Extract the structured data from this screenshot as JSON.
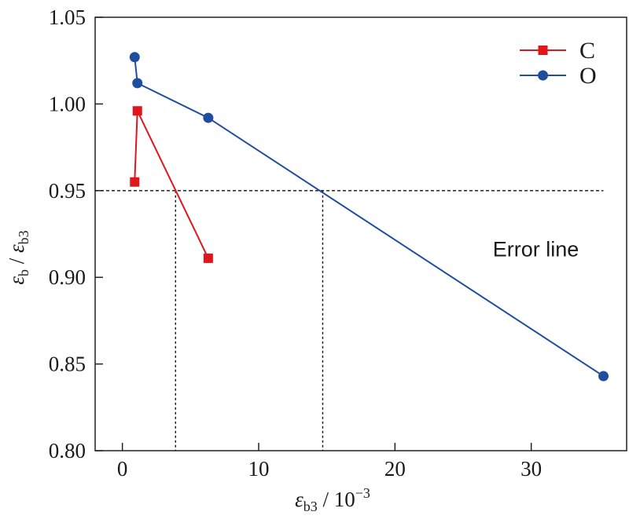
{
  "chart_data": {
    "type": "line",
    "xlabel": {
      "symbol": "ε",
      "sub": "b3",
      "rest": " / 10",
      "sup": "−3"
    },
    "ylabel": {
      "symbol1": "ε",
      "sub1": "b",
      "mid": " / ",
      "symbol2": "ε",
      "sub2": "b3"
    },
    "xlim": [
      -2,
      37
    ],
    "ylim": [
      0.8,
      1.05
    ],
    "xticks": [
      0,
      10,
      20,
      30
    ],
    "xtick_labels": [
      "0",
      "10",
      "20",
      "30"
    ],
    "yticks": [
      0.8,
      0.85,
      0.9,
      0.95,
      1.0,
      1.05
    ],
    "ytick_labels": [
      "0.80",
      "0.85",
      "0.90",
      "0.95",
      "1.00",
      "1.05"
    ],
    "legend_position": "top-right",
    "series": [
      {
        "name": "C",
        "marker": "square",
        "color": "#e0161c",
        "x": [
          0.9,
          1.1,
          6.3
        ],
        "y": [
          0.955,
          0.996,
          0.911
        ]
      },
      {
        "name": "O",
        "marker": "circle",
        "color": "#1f4e9e",
        "x": [
          0.9,
          1.1,
          6.3,
          35.3
        ],
        "y": [
          1.027,
          1.012,
          0.992,
          0.843
        ]
      }
    ],
    "reference_lines": {
      "horizontal": {
        "y": 0.95,
        "x_end": 35.3
      },
      "vertical": [
        {
          "x": 3.9,
          "y_top": 0.95
        },
        {
          "x": 14.7,
          "y_top": 0.95
        }
      ]
    },
    "annotations": [
      {
        "text": "Error line",
        "x": 33.5,
        "y": 0.912
      }
    ]
  }
}
